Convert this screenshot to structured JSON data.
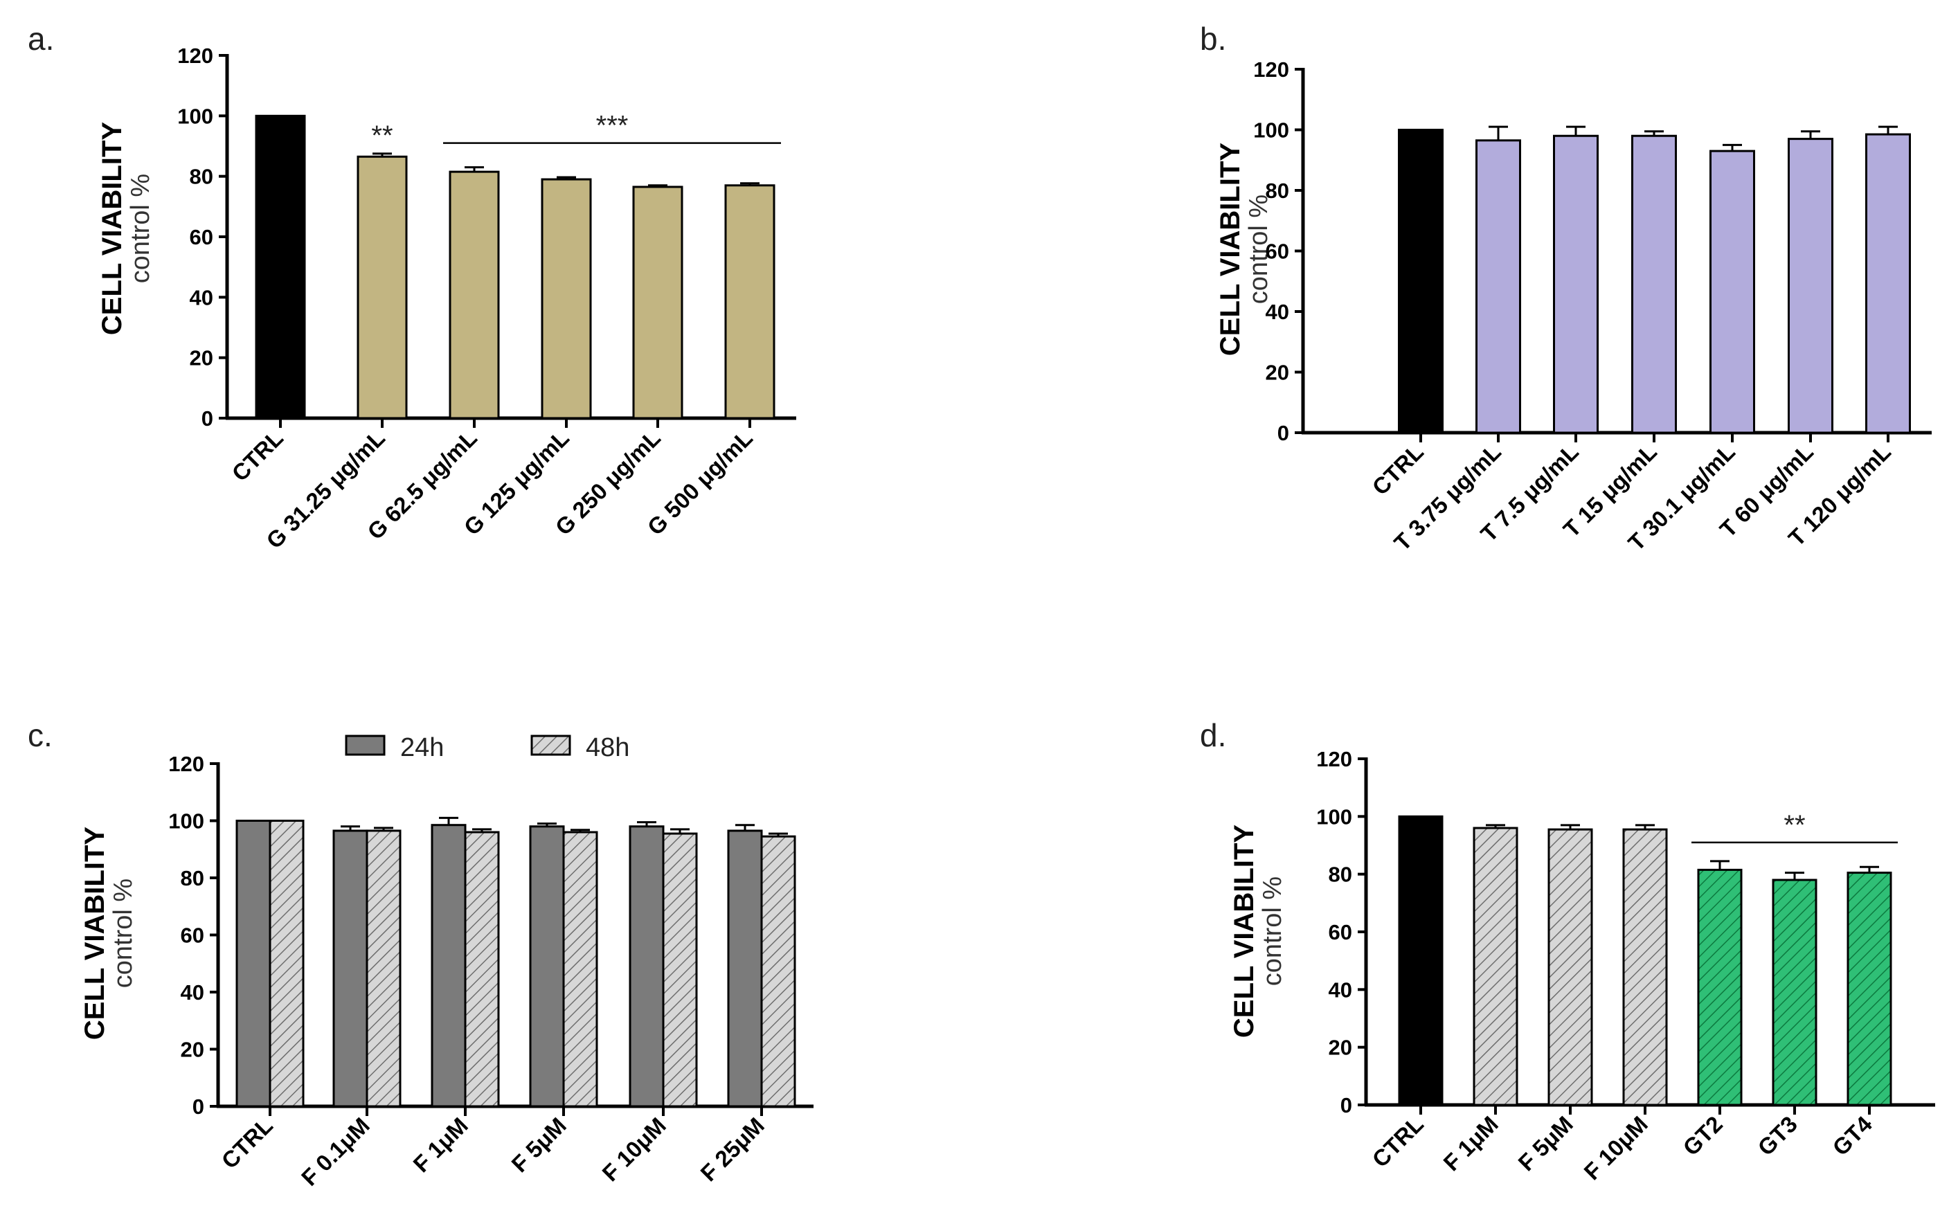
{
  "chart_data": [
    {
      "id": "a",
      "type": "bar",
      "panel_label": "a.",
      "ylabel": "CELL VIABILITY",
      "ylabel_sub": "control %",
      "ylim": [
        0,
        120
      ],
      "yticks": [
        0,
        20,
        40,
        60,
        80,
        100,
        120
      ],
      "categories": [
        "CTRL",
        "G 31.25 μg/mL",
        "G 62.5 μg/mL",
        "G 125 μg/mL",
        "G 250 μg/mL",
        "G 500 μg/mL"
      ],
      "series": [
        {
          "name": "viability",
          "values": [
            100,
            86.5,
            81.5,
            79,
            76.5,
            77
          ],
          "errors": [
            0,
            1,
            1.5,
            0.7,
            0.5,
            0.7
          ],
          "colors": [
            "#000000",
            "#c2b582",
            "#c2b582",
            "#c2b582",
            "#c2b582",
            "#c2b582"
          ]
        }
      ],
      "significance": [
        {
          "label": "**",
          "from": 1,
          "to": 1,
          "y": 95
        },
        {
          "label": "***",
          "from": 2,
          "to": 5,
          "y": 91
        }
      ]
    },
    {
      "id": "b",
      "type": "bar",
      "panel_label": "b.",
      "ylabel": "CELL VIABILITY",
      "ylabel_sub": "control %",
      "ylim": [
        0,
        120
      ],
      "yticks": [
        0,
        20,
        40,
        60,
        80,
        100,
        120
      ],
      "categories": [
        "CTRL",
        "T 3.75 μg/mL",
        "T 7.5 μg/mL",
        "T 15 μg/mL",
        "T 30.1 μg/mL",
        "T 60 μg/mL",
        "T 120 μg/mL"
      ],
      "series": [
        {
          "name": "viability",
          "values": [
            100,
            96.5,
            98,
            98,
            93,
            97,
            98.5
          ],
          "errors": [
            0,
            4.5,
            3,
            1.5,
            2,
            2.5,
            2.5
          ],
          "colors": [
            "#000000",
            "#b2acdc",
            "#b2acdc",
            "#b2acdc",
            "#b2acdc",
            "#b2acdc",
            "#b2acdc"
          ]
        }
      ],
      "significance": []
    },
    {
      "id": "c",
      "type": "bar",
      "panel_label": "c.",
      "ylabel": "CELL VIABILITY",
      "ylabel_sub": "control %",
      "ylim": [
        0,
        120
      ],
      "yticks": [
        0,
        20,
        40,
        60,
        80,
        100,
        120
      ],
      "categories": [
        "CTRL",
        "F 0.1μM",
        "F 1μM",
        "F 5μM",
        "F 10μM",
        "F 25μM"
      ],
      "legend": [
        "24h",
        "48h"
      ],
      "series": [
        {
          "name": "24h",
          "values": [
            100,
            96.5,
            98.5,
            98,
            98,
            96.5
          ],
          "errors": [
            0,
            1.5,
            2.5,
            1,
            1.5,
            2
          ],
          "color": "#7b7b7b",
          "hatch": false
        },
        {
          "name": "48h",
          "values": [
            100,
            96.5,
            96,
            96,
            95.5,
            94.5
          ],
          "errors": [
            0,
            1,
            1,
            0.8,
            1.5,
            1
          ],
          "color": "#d7d7d7",
          "hatch": true
        }
      ],
      "significance": []
    },
    {
      "id": "d",
      "type": "bar",
      "panel_label": "d.",
      "ylabel": "CELL VIABILITY",
      "ylabel_sub": "control %",
      "ylim": [
        0,
        120
      ],
      "yticks": [
        0,
        20,
        40,
        60,
        80,
        100,
        120
      ],
      "categories": [
        "CTRL",
        "F 1μM",
        "F 5μM",
        "F 10μM",
        "GT2",
        "GT3",
        "GT4"
      ],
      "series": [
        {
          "name": "viability",
          "values": [
            100,
            96,
            95.5,
            95.5,
            81.5,
            78,
            80.5
          ],
          "errors": [
            0,
            1,
            1.5,
            1.5,
            3,
            2.5,
            2
          ],
          "colors": [
            "#000000",
            "#cfcfcf",
            "#cfcfcf",
            "#cfcfcf",
            "#22b36a",
            "#22b36a",
            "#22b36a"
          ],
          "hatch": [
            false,
            true,
            true,
            true,
            true,
            true,
            true
          ]
        }
      ],
      "significance": [
        {
          "label": "**",
          "from": 4,
          "to": 6,
          "y": 91
        }
      ]
    }
  ]
}
